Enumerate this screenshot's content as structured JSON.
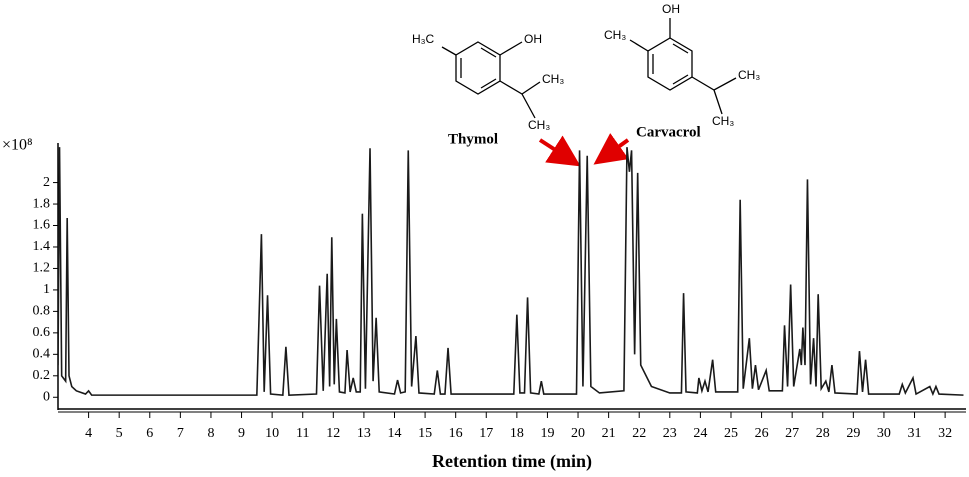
{
  "chart_data": {
    "type": "line",
    "x_label": "Retention time (min)",
    "y_unit": "×10⁸",
    "annotations": [
      {
        "text": "Thymol"
      },
      {
        "text": "Carvacrol"
      }
    ],
    "structure_labels": [
      [
        "H₃C",
        "OH",
        "CH₃",
        "CH₃"
      ],
      [
        "OH",
        "CH₃",
        "CH₃",
        "CH₃"
      ]
    ],
    "xlim": [
      3,
      32.65
    ],
    "ylim": [
      -0.1,
      2.35
    ],
    "xticks": [
      4,
      5,
      6,
      7,
      8,
      9,
      10,
      11,
      12,
      13,
      14,
      15,
      16,
      17,
      18,
      19,
      20,
      21,
      22,
      23,
      24,
      25,
      26,
      27,
      28,
      29,
      30,
      31,
      32
    ],
    "yticks": [
      0,
      0.2,
      0.4,
      0.6,
      0.8,
      1,
      1.2,
      1.4,
      1.6,
      1.8,
      2
    ],
    "x": [
      3.0,
      3.05,
      3.12,
      3.25,
      3.3,
      3.36,
      3.45,
      3.6,
      3.9,
      4.0,
      4.1,
      9.5,
      9.65,
      9.74,
      9.85,
      9.95,
      10.35,
      10.45,
      10.55,
      11.45,
      11.55,
      11.67,
      11.8,
      11.88,
      11.95,
      12.03,
      12.1,
      12.2,
      12.38,
      12.45,
      12.55,
      12.65,
      12.75,
      12.88,
      12.95,
      13.05,
      13.2,
      13.3,
      13.4,
      13.5,
      14.0,
      14.1,
      14.2,
      14.35,
      14.45,
      14.56,
      14.7,
      14.8,
      15.3,
      15.4,
      15.5,
      15.65,
      15.75,
      15.85,
      17.9,
      18.0,
      18.1,
      18.25,
      18.35,
      18.45,
      18.72,
      18.8,
      18.88,
      19.95,
      20.05,
      20.16,
      20.3,
      20.42,
      20.7,
      21.5,
      21.6,
      21.68,
      21.75,
      21.85,
      21.95,
      22.05,
      22.4,
      23.0,
      23.38,
      23.45,
      23.53,
      23.9,
      23.95,
      24.05,
      24.15,
      24.25,
      24.4,
      24.5,
      25.22,
      25.3,
      25.4,
      25.6,
      25.7,
      25.8,
      25.9,
      26.15,
      26.25,
      26.68,
      26.75,
      26.85,
      26.95,
      27.05,
      27.25,
      27.3,
      27.35,
      27.42,
      27.5,
      27.6,
      27.7,
      27.78,
      27.85,
      27.95,
      28.1,
      28.2,
      28.3,
      28.4,
      29.12,
      29.2,
      29.3,
      29.4,
      29.5,
      30.5,
      30.6,
      30.7,
      30.95,
      31.05,
      31.5,
      31.6,
      31.7,
      31.8,
      32.6
    ],
    "series": [
      {
        "color": "#1a1a1a",
        "values": [
          0.3,
          2.33,
          0.2,
          0.15,
          1.67,
          0.2,
          0.1,
          0.06,
          0.03,
          0.06,
          0.02,
          0.02,
          1.52,
          0.05,
          0.95,
          0.03,
          0.02,
          0.47,
          0.02,
          0.03,
          1.04,
          0.06,
          1.15,
          0.1,
          1.49,
          0.12,
          0.73,
          0.05,
          0.04,
          0.44,
          0.05,
          0.18,
          0.05,
          0.05,
          1.71,
          0.08,
          2.32,
          0.15,
          0.74,
          0.05,
          0.03,
          0.16,
          0.04,
          0.05,
          2.3,
          0.1,
          0.57,
          0.04,
          0.03,
          0.25,
          0.03,
          0.03,
          0.46,
          0.03,
          0.03,
          0.77,
          0.04,
          0.04,
          0.93,
          0.04,
          0.03,
          0.15,
          0.03,
          0.03,
          2.3,
          0.1,
          2.25,
          0.1,
          0.04,
          0.06,
          2.33,
          2.1,
          2.3,
          0.4,
          2.09,
          0.3,
          0.1,
          0.04,
          0.04,
          0.97,
          0.05,
          0.04,
          0.18,
          0.06,
          0.15,
          0.05,
          0.35,
          0.05,
          0.05,
          1.84,
          0.08,
          0.55,
          0.08,
          0.3,
          0.07,
          0.25,
          0.06,
          0.06,
          0.67,
          0.1,
          1.05,
          0.1,
          0.45,
          0.3,
          0.65,
          0.3,
          2.03,
          0.12,
          0.55,
          0.1,
          0.96,
          0.08,
          0.15,
          0.05,
          0.3,
          0.04,
          0.03,
          0.43,
          0.05,
          0.35,
          0.03,
          0.03,
          0.12,
          0.04,
          0.18,
          0.03,
          0.1,
          0.03,
          0.1,
          0.03,
          0.02
        ]
      }
    ]
  }
}
